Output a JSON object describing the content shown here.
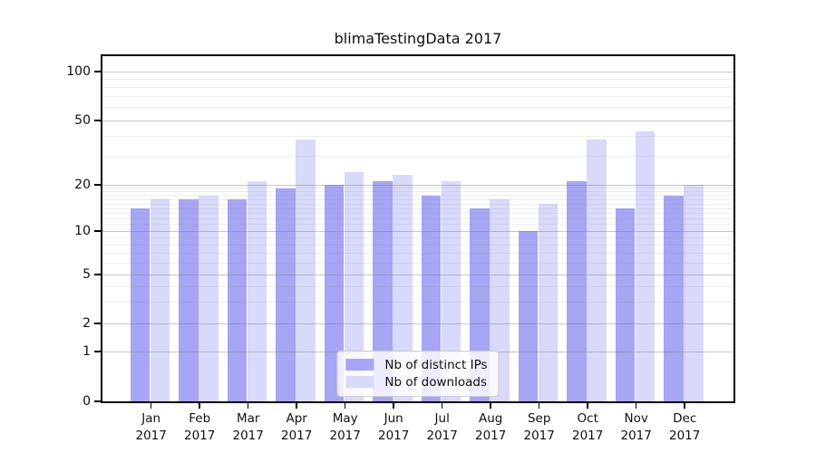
{
  "chart_data": {
    "type": "bar",
    "title": "blimaTestingData 2017",
    "categories": [
      "Jan",
      "Feb",
      "Mar",
      "Apr",
      "May",
      "Jun",
      "Jul",
      "Aug",
      "Sep",
      "Oct",
      "Nov",
      "Dec"
    ],
    "category_year_label": "2017",
    "series": [
      {
        "name": "Nb of distinct IPs",
        "color": "#a6a6f4",
        "values": [
          14,
          16,
          16,
          19,
          20,
          21,
          17,
          14,
          10,
          21,
          14,
          17
        ]
      },
      {
        "name": "Nb of downloads",
        "color": "#d9d9fa",
        "values": [
          16,
          17,
          21,
          38,
          24,
          23,
          21,
          16,
          15,
          38,
          43,
          20
        ]
      }
    ],
    "yscale": "log-with-zero",
    "yticks": [
      0,
      1,
      2,
      5,
      10,
      20,
      50,
      100
    ],
    "ylim": [
      0,
      125
    ],
    "grid": true,
    "legend_position": "lower center"
  }
}
